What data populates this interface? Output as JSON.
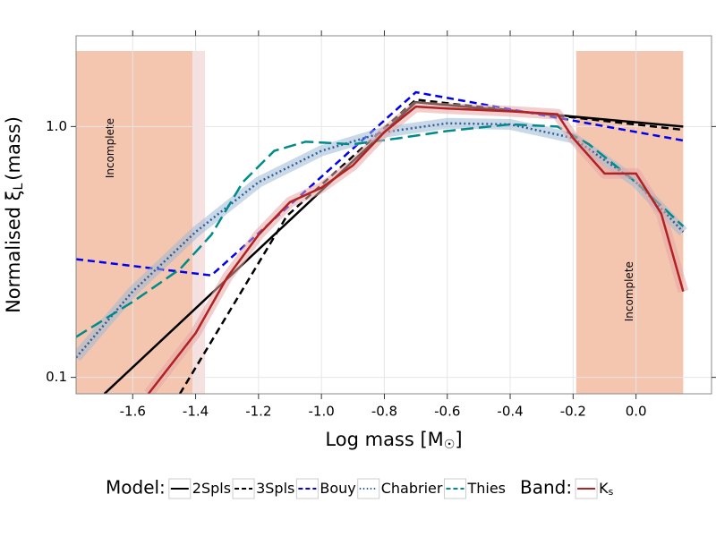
{
  "chart_data": {
    "type": "line",
    "xlabel": {
      "main": "Log mass [M",
      "sub": "☉",
      "rest": "]"
    },
    "ylabel": {
      "main": "Normalised ξ",
      "sub": "L",
      "rest": "(mass)"
    },
    "xlim": [
      -1.78,
      0.24
    ],
    "ylim": [
      0.086,
      2.3
    ],
    "log_y": true,
    "grid": true,
    "xticks": [
      -1.6,
      -1.4,
      -1.2,
      {
        "value": -1.0,
        "label": "-1.0"
      },
      -0.8,
      -0.6,
      -0.4,
      -0.2,
      {
        "value": 0,
        "label": "0.0"
      }
    ],
    "yticks": [
      0.1,
      {
        "value": 1,
        "label": "1.0"
      }
    ],
    "regions": [
      {
        "x": [
          -1.78,
          -1.41
        ],
        "top": 2.0,
        "color": "#f4c6b0",
        "label": "Incomplete",
        "label_x": -1.67,
        "label_y": 0.82
      },
      {
        "x": [
          -1.41,
          -1.37
        ],
        "top": 2.0,
        "color": "#f6e0e0"
      },
      {
        "x": [
          -0.19,
          0.15
        ],
        "top": 2.0,
        "color": "#f4c6b0",
        "label": "Incomplete",
        "label_x": -0.02,
        "label_y": 0.22
      }
    ],
    "series": [
      {
        "name": "2Spls",
        "group": "Model:",
        "color": "#000000",
        "dash": "none",
        "width": 2.5,
        "x": [
          -1.69,
          -0.7,
          0.15
        ],
        "values": [
          0.086,
          1.25,
          1.0
        ]
      },
      {
        "name": "3Spls",
        "group": "Model:",
        "color": "#000000",
        "dash": "8 5",
        "width": 2.5,
        "x": [
          -1.45,
          -1.11,
          -0.7,
          0.15
        ],
        "values": [
          0.086,
          0.44,
          1.28,
          0.97
        ]
      },
      {
        "name": "Bouy",
        "group": "Model:",
        "color": "#0000ee",
        "dash": "8 5",
        "width": 2.5,
        "x": [
          -1.78,
          -1.35,
          -0.7,
          0.15
        ],
        "values": [
          0.296,
          0.255,
          1.37,
          0.88
        ]
      },
      {
        "name": "Chabrier",
        "group": "Model:",
        "color": "#2f5f9a",
        "dash": "2 3",
        "width": 2.5,
        "ribbon": "#9fb9d6",
        "x": [
          -1.78,
          -1.6,
          -1.4,
          -1.2,
          -1.0,
          -0.8,
          -0.6,
          -0.4,
          -0.2,
          0.0,
          0.15
        ],
        "values": [
          0.12,
          0.22,
          0.38,
          0.6,
          0.8,
          0.95,
          1.03,
          1.02,
          0.9,
          0.6,
          0.38
        ]
      },
      {
        "name": "Thies",
        "group": "Model:",
        "color": "#008b8b",
        "dash": "14 6",
        "width": 2.5,
        "x": [
          -1.78,
          -1.6,
          -1.45,
          -1.35,
          -1.25,
          -1.15,
          -1.05,
          -0.9,
          -0.75,
          -0.6,
          -0.4,
          -0.25,
          -0.15,
          0.0,
          0.15
        ],
        "values": [
          0.145,
          0.2,
          0.27,
          0.37,
          0.6,
          0.8,
          0.87,
          0.85,
          0.9,
          0.96,
          1.02,
          1.0,
          0.85,
          0.6,
          0.4
        ]
      },
      {
        "name": "K",
        "name_sub": "s",
        "group": "Band:",
        "color": "#b22222",
        "dash": "none",
        "width": 2.5,
        "ribbon": "#e6a8a8",
        "x": [
          -1.55,
          -1.4,
          -1.3,
          -1.2,
          -1.1,
          -1.0,
          -0.9,
          -0.8,
          -0.7,
          -0.6,
          -0.4,
          -0.25,
          -0.2,
          -0.1,
          0.0,
          0.08,
          0.15
        ],
        "values": [
          0.086,
          0.15,
          0.25,
          0.37,
          0.5,
          0.57,
          0.7,
          0.95,
          1.2,
          1.18,
          1.15,
          1.12,
          0.9,
          0.65,
          0.65,
          0.45,
          0.22
        ]
      }
    ]
  }
}
